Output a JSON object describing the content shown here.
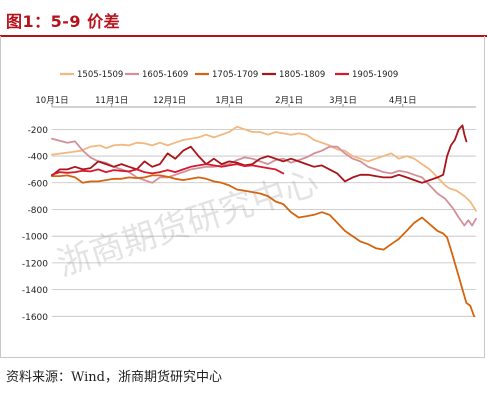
{
  "header": {
    "title": "图1：5-9 价差"
  },
  "footer": {
    "source": "资料来源：Wind，浙商期货研究中心"
  },
  "watermark": {
    "text": "浙商期货研究中心"
  },
  "colors": {
    "title": "#b5121b",
    "s1505": "#f2b880",
    "s1605": "#d4909a",
    "s1705": "#d4640f",
    "s1805": "#a8151b",
    "s1905": "#d8182e",
    "grid": "#bfbfbf"
  },
  "chart_data": {
    "type": "line",
    "title": "",
    "xlabel": "",
    "ylabel": "",
    "x_ticks": [
      "10月1日",
      "11月1日",
      "12月1日",
      "1月1日",
      "2月1日",
      "3月1日",
      "4月1日"
    ],
    "y_ticks": [
      -200,
      -400,
      -600,
      -800,
      -1000,
      -1200,
      -1400,
      -1600
    ],
    "ylim": [
      -1650,
      -70
    ],
    "xlim_days": [
      0,
      220
    ],
    "grid": "horizontal",
    "legend_position": "top",
    "series": [
      {
        "name": "1505-1509",
        "color_key": "s1505",
        "width": 1.8,
        "points": [
          [
            0,
            -390
          ],
          [
            5,
            -380
          ],
          [
            10,
            -370
          ],
          [
            15,
            -360
          ],
          [
            20,
            -330
          ],
          [
            25,
            -320
          ],
          [
            28,
            -340
          ],
          [
            32,
            -320
          ],
          [
            36,
            -315
          ],
          [
            40,
            -320
          ],
          [
            44,
            -300
          ],
          [
            48,
            -305
          ],
          [
            52,
            -320
          ],
          [
            56,
            -300
          ],
          [
            60,
            -320
          ],
          [
            64,
            -300
          ],
          [
            68,
            -280
          ],
          [
            72,
            -270
          ],
          [
            76,
            -260
          ],
          [
            80,
            -240
          ],
          [
            84,
            -260
          ],
          [
            88,
            -240
          ],
          [
            92,
            -220
          ],
          [
            96,
            -180
          ],
          [
            100,
            -200
          ],
          [
            104,
            -220
          ],
          [
            108,
            -220
          ],
          [
            112,
            -240
          ],
          [
            116,
            -220
          ],
          [
            120,
            -230
          ],
          [
            124,
            -240
          ],
          [
            128,
            -230
          ],
          [
            132,
            -240
          ],
          [
            136,
            -280
          ],
          [
            140,
            -300
          ],
          [
            144,
            -320
          ],
          [
            148,
            -350
          ],
          [
            152,
            -360
          ],
          [
            156,
            -400
          ],
          [
            160,
            -420
          ],
          [
            164,
            -440
          ],
          [
            168,
            -420
          ],
          [
            172,
            -400
          ],
          [
            176,
            -380
          ],
          [
            180,
            -420
          ],
          [
            184,
            -400
          ],
          [
            188,
            -420
          ],
          [
            192,
            -460
          ],
          [
            196,
            -500
          ],
          [
            200,
            -560
          ],
          [
            204,
            -620
          ],
          [
            206,
            -640
          ],
          [
            210,
            -660
          ],
          [
            214,
            -700
          ],
          [
            217,
            -740
          ],
          [
            220,
            -810
          ]
        ]
      },
      {
        "name": "1605-1609",
        "color_key": "s1605",
        "width": 1.8,
        "points": [
          [
            0,
            -270
          ],
          [
            4,
            -285
          ],
          [
            8,
            -300
          ],
          [
            12,
            -290
          ],
          [
            16,
            -360
          ],
          [
            20,
            -410
          ],
          [
            24,
            -440
          ],
          [
            28,
            -450
          ],
          [
            32,
            -480
          ],
          [
            36,
            -500
          ],
          [
            40,
            -520
          ],
          [
            44,
            -560
          ],
          [
            48,
            -580
          ],
          [
            52,
            -600
          ],
          [
            56,
            -560
          ],
          [
            60,
            -560
          ],
          [
            64,
            -540
          ],
          [
            68,
            -520
          ],
          [
            72,
            -500
          ],
          [
            76,
            -490
          ],
          [
            80,
            -480
          ],
          [
            84,
            -480
          ],
          [
            88,
            -470
          ],
          [
            92,
            -460
          ],
          [
            96,
            -430
          ],
          [
            100,
            -410
          ],
          [
            104,
            -420
          ],
          [
            108,
            -440
          ],
          [
            112,
            -460
          ],
          [
            116,
            -430
          ],
          [
            120,
            -420
          ],
          [
            124,
            -450
          ],
          [
            128,
            -430
          ],
          [
            132,
            -410
          ],
          [
            136,
            -380
          ],
          [
            140,
            -360
          ],
          [
            144,
            -330
          ],
          [
            148,
            -330
          ],
          [
            152,
            -380
          ],
          [
            156,
            -420
          ],
          [
            160,
            -440
          ],
          [
            164,
            -480
          ],
          [
            168,
            -500
          ],
          [
            172,
            -520
          ],
          [
            176,
            -530
          ],
          [
            180,
            -510
          ],
          [
            184,
            -520
          ],
          [
            188,
            -540
          ],
          [
            192,
            -560
          ],
          [
            196,
            -620
          ],
          [
            200,
            -680
          ],
          [
            204,
            -720
          ],
          [
            208,
            -790
          ],
          [
            211,
            -860
          ],
          [
            214,
            -920
          ],
          [
            216,
            -880
          ],
          [
            218,
            -920
          ],
          [
            220,
            -870
          ]
        ]
      },
      {
        "name": "1705-1709",
        "color_key": "s1705",
        "width": 1.8,
        "points": [
          [
            0,
            -550
          ],
          [
            4,
            -550
          ],
          [
            8,
            -545
          ],
          [
            12,
            -560
          ],
          [
            16,
            -600
          ],
          [
            20,
            -590
          ],
          [
            24,
            -590
          ],
          [
            28,
            -580
          ],
          [
            32,
            -570
          ],
          [
            36,
            -570
          ],
          [
            40,
            -560
          ],
          [
            44,
            -565
          ],
          [
            48,
            -560
          ],
          [
            52,
            -545
          ],
          [
            56,
            -545
          ],
          [
            60,
            -555
          ],
          [
            64,
            -570
          ],
          [
            68,
            -580
          ],
          [
            72,
            -570
          ],
          [
            76,
            -560
          ],
          [
            80,
            -570
          ],
          [
            84,
            -590
          ],
          [
            88,
            -600
          ],
          [
            92,
            -620
          ],
          [
            96,
            -650
          ],
          [
            100,
            -660
          ],
          [
            104,
            -670
          ],
          [
            108,
            -680
          ],
          [
            112,
            -700
          ],
          [
            116,
            -740
          ],
          [
            120,
            -760
          ],
          [
            124,
            -820
          ],
          [
            128,
            -860
          ],
          [
            132,
            -850
          ],
          [
            136,
            -840
          ],
          [
            140,
            -820
          ],
          [
            144,
            -840
          ],
          [
            148,
            -900
          ],
          [
            152,
            -960
          ],
          [
            156,
            -1000
          ],
          [
            160,
            -1040
          ],
          [
            164,
            -1060
          ],
          [
            168,
            -1090
          ],
          [
            172,
            -1100
          ],
          [
            176,
            -1060
          ],
          [
            180,
            -1020
          ],
          [
            184,
            -960
          ],
          [
            188,
            -900
          ],
          [
            192,
            -860
          ],
          [
            196,
            -910
          ],
          [
            200,
            -960
          ],
          [
            203,
            -980
          ],
          [
            205,
            -1010
          ],
          [
            207,
            -1100
          ],
          [
            209,
            -1200
          ],
          [
            211,
            -1300
          ],
          [
            213,
            -1400
          ],
          [
            215,
            -1500
          ],
          [
            217,
            -1520
          ],
          [
            219,
            -1600
          ]
        ]
      },
      {
        "name": "1805-1809",
        "color_key": "s1805",
        "width": 1.8,
        "points": [
          [
            0,
            -545
          ],
          [
            4,
            -500
          ],
          [
            8,
            -500
          ],
          [
            12,
            -480
          ],
          [
            16,
            -500
          ],
          [
            20,
            -490
          ],
          [
            24,
            -440
          ],
          [
            28,
            -460
          ],
          [
            32,
            -480
          ],
          [
            36,
            -460
          ],
          [
            40,
            -480
          ],
          [
            44,
            -500
          ],
          [
            48,
            -440
          ],
          [
            52,
            -480
          ],
          [
            56,
            -460
          ],
          [
            60,
            -380
          ],
          [
            64,
            -420
          ],
          [
            68,
            -360
          ],
          [
            72,
            -330
          ],
          [
            76,
            -400
          ],
          [
            80,
            -460
          ],
          [
            84,
            -420
          ],
          [
            88,
            -460
          ],
          [
            92,
            -440
          ],
          [
            96,
            -450
          ],
          [
            100,
            -470
          ],
          [
            104,
            -460
          ],
          [
            108,
            -420
          ],
          [
            112,
            -400
          ],
          [
            116,
            -420
          ],
          [
            120,
            -440
          ],
          [
            124,
            -420
          ],
          [
            128,
            -440
          ],
          [
            132,
            -460
          ],
          [
            136,
            -480
          ],
          [
            140,
            -470
          ],
          [
            144,
            -500
          ],
          [
            148,
            -530
          ],
          [
            152,
            -590
          ],
          [
            156,
            -560
          ],
          [
            160,
            -540
          ],
          [
            164,
            -540
          ],
          [
            168,
            -550
          ],
          [
            172,
            -560
          ],
          [
            176,
            -560
          ],
          [
            180,
            -540
          ],
          [
            184,
            -560
          ],
          [
            188,
            -580
          ],
          [
            192,
            -600
          ],
          [
            196,
            -580
          ],
          [
            200,
            -560
          ],
          [
            203,
            -540
          ],
          [
            205,
            -400
          ],
          [
            207,
            -320
          ],
          [
            209,
            -280
          ],
          [
            211,
            -200
          ],
          [
            213,
            -170
          ],
          [
            214,
            -240
          ],
          [
            215,
            -290
          ]
        ]
      },
      {
        "name": "1905-1909",
        "color_key": "s1905",
        "width": 1.8,
        "points": [
          [
            0,
            -540
          ],
          [
            4,
            -520
          ],
          [
            8,
            -525
          ],
          [
            12,
            -520
          ],
          [
            16,
            -510
          ],
          [
            20,
            -515
          ],
          [
            24,
            -500
          ],
          [
            28,
            -520
          ],
          [
            32,
            -505
          ],
          [
            36,
            -510
          ],
          [
            40,
            -515
          ],
          [
            44,
            -500
          ],
          [
            48,
            -520
          ],
          [
            52,
            -530
          ],
          [
            56,
            -520
          ],
          [
            60,
            -505
          ],
          [
            64,
            -520
          ],
          [
            68,
            -500
          ],
          [
            72,
            -480
          ],
          [
            76,
            -470
          ],
          [
            80,
            -460
          ],
          [
            84,
            -470
          ],
          [
            88,
            -480
          ],
          [
            92,
            -470
          ],
          [
            96,
            -460
          ],
          [
            100,
            -475
          ],
          [
            104,
            -470
          ],
          [
            108,
            -480
          ],
          [
            112,
            -490
          ],
          [
            116,
            -500
          ],
          [
            120,
            -530
          ]
        ]
      }
    ]
  }
}
